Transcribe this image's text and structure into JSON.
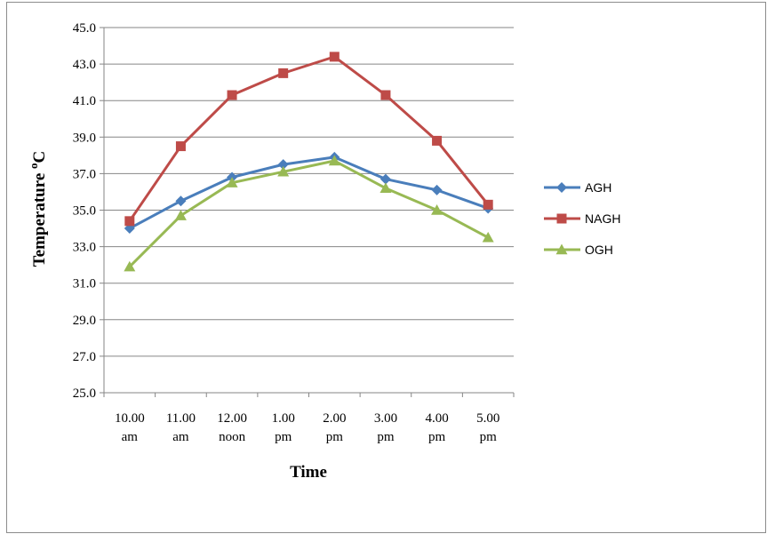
{
  "chart_data": {
    "type": "line",
    "categories": [
      [
        "10.00",
        "am"
      ],
      [
        "11.00",
        "am"
      ],
      [
        "12.00",
        "noon"
      ],
      [
        "1.00",
        "pm"
      ],
      [
        "2.00",
        "pm"
      ],
      [
        "3.00",
        "pm"
      ],
      [
        "4.00",
        "pm"
      ],
      [
        "5.00",
        "pm"
      ]
    ],
    "xlabel": "Time",
    "ylabel": "Temperature ",
    "ylabel_unit_sup": "o",
    "ylabel_unit": "C",
    "ylim": [
      25.0,
      45.0
    ],
    "yticks": [
      "25.0",
      "27.0",
      "29.0",
      "31.0",
      "33.0",
      "35.0",
      "37.0",
      "39.0",
      "41.0",
      "43.0",
      "45.0"
    ],
    "grid": "horizontal",
    "legend_position": "right",
    "series": [
      {
        "name": "AGH",
        "color": "#4a7ebb",
        "marker": "diamond",
        "values": [
          34.0,
          35.5,
          36.8,
          37.5,
          37.9,
          36.7,
          36.1,
          35.1
        ]
      },
      {
        "name": "NAGH",
        "color": "#be4b48",
        "marker": "square",
        "values": [
          34.4,
          38.5,
          41.3,
          42.5,
          43.4,
          41.3,
          38.8,
          35.3
        ]
      },
      {
        "name": "OGH",
        "color": "#98b954",
        "marker": "triangle",
        "values": [
          31.9,
          34.7,
          36.5,
          37.1,
          37.7,
          36.2,
          35.0,
          33.5
        ]
      }
    ]
  }
}
